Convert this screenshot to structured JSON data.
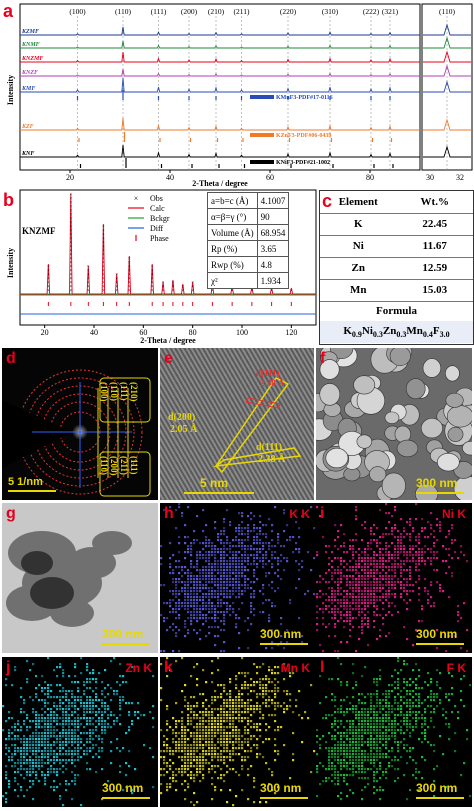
{
  "panel_a": {
    "label": "a",
    "ylabel": "Intensity",
    "xlabel": "2-Theta / degree",
    "peaks_top": [
      "(100)",
      "(110)",
      "(111)",
      "(200)",
      "(210)",
      "(211)",
      "(220)",
      "(310)",
      "(222)",
      "(321)"
    ],
    "peaks_inset": "(110)",
    "xticks": [
      "20",
      "40",
      "60",
      "80"
    ],
    "xticks_inset": [
      "30",
      "32"
    ],
    "traces": [
      {
        "name": "KZMF",
        "color": "#1f3b8c"
      },
      {
        "name": "KNMF",
        "color": "#1f8a3c"
      },
      {
        "name": "KNZMF",
        "color": "#e8001c"
      },
      {
        "name": "KNZF",
        "color": "#b23fb5"
      },
      {
        "name": "KMF",
        "color": "#2a4bb8"
      },
      {
        "name": "KZF",
        "color": "#f07a2a"
      },
      {
        "name": "KNF",
        "color": "#000000"
      }
    ],
    "refs": [
      {
        "label": "KMnF3-PDF#17-0116",
        "color": "#2a4bb8"
      },
      {
        "label": "KZnF3-PDF#06-0439",
        "color": "#f07a2a"
      },
      {
        "label": "KNiF3-PDF#21-1002",
        "color": "#000000"
      }
    ]
  },
  "panel_b": {
    "label": "b",
    "sample": "KNZMF",
    "ylabel": "Intensity",
    "xlabel": "2-Theta / degree",
    "xticks": [
      "20",
      "40",
      "60",
      "80",
      "100",
      "120"
    ],
    "legend": [
      "Obs",
      "Calc",
      "Bckgr",
      "Diff",
      "Phase"
    ],
    "params": [
      {
        "name": "a=b=c (Å)",
        "value": "4.1007"
      },
      {
        "name": "α=β=γ (°)",
        "value": "90"
      },
      {
        "name": "Volume (Å)",
        "value": "68.954"
      },
      {
        "name": "Rp (%)",
        "value": "3.65"
      },
      {
        "name": "Rwp (%)",
        "value": "4.8"
      },
      {
        "name": "χ²",
        "value": "1.934"
      }
    ]
  },
  "panel_c": {
    "label": "c",
    "col1": "Element",
    "col2": "Wt.%",
    "rows": [
      {
        "element": "K",
        "wt": "22.45"
      },
      {
        "element": "Ni",
        "wt": "11.67"
      },
      {
        "element": "Zn",
        "wt": "12.59"
      },
      {
        "element": "Mn",
        "wt": "15.03"
      }
    ],
    "formula_header": "Formula",
    "formula": "K0.9Ni0.3Zn0.3Mn0.4F3.0"
  },
  "panel_d": {
    "label": "d",
    "scale": "5 1/nm",
    "rings_top": [
      "(100)",
      "(110)",
      "(111)",
      "(210)"
    ],
    "rings_bottom": [
      "(110)",
      "(200)",
      "(211)",
      "(111)"
    ]
  },
  "panel_e": {
    "label": "e",
    "scale": "5 nm",
    "d1": "d(111)",
    "d1v": "2.38 Å",
    "d2": "d(200)",
    "d2v": "2.05 Å",
    "d3": "d(111)",
    "d3v": "2.38 Å"
  },
  "panel_f": {
    "label": "f",
    "scale": "300 nm"
  },
  "panel_g": {
    "label": "g",
    "scale": "300 nm"
  },
  "panel_h": {
    "label": "h",
    "element": "K K",
    "scale": "300 nm",
    "color": "#5a5ad8"
  },
  "panel_i": {
    "label": "i",
    "element": "Ni K",
    "scale": "300 nm",
    "color": "#e0208a"
  },
  "panel_j": {
    "label": "j",
    "element": "Zn K",
    "scale": "300 nm",
    "color": "#20c8d8"
  },
  "panel_k": {
    "label": "k",
    "element": "Mn K",
    "scale": "300 nm",
    "color": "#e8e020"
  },
  "panel_l": {
    "label": "l",
    "element": "F K",
    "scale": "300 nm",
    "color": "#20c040"
  }
}
